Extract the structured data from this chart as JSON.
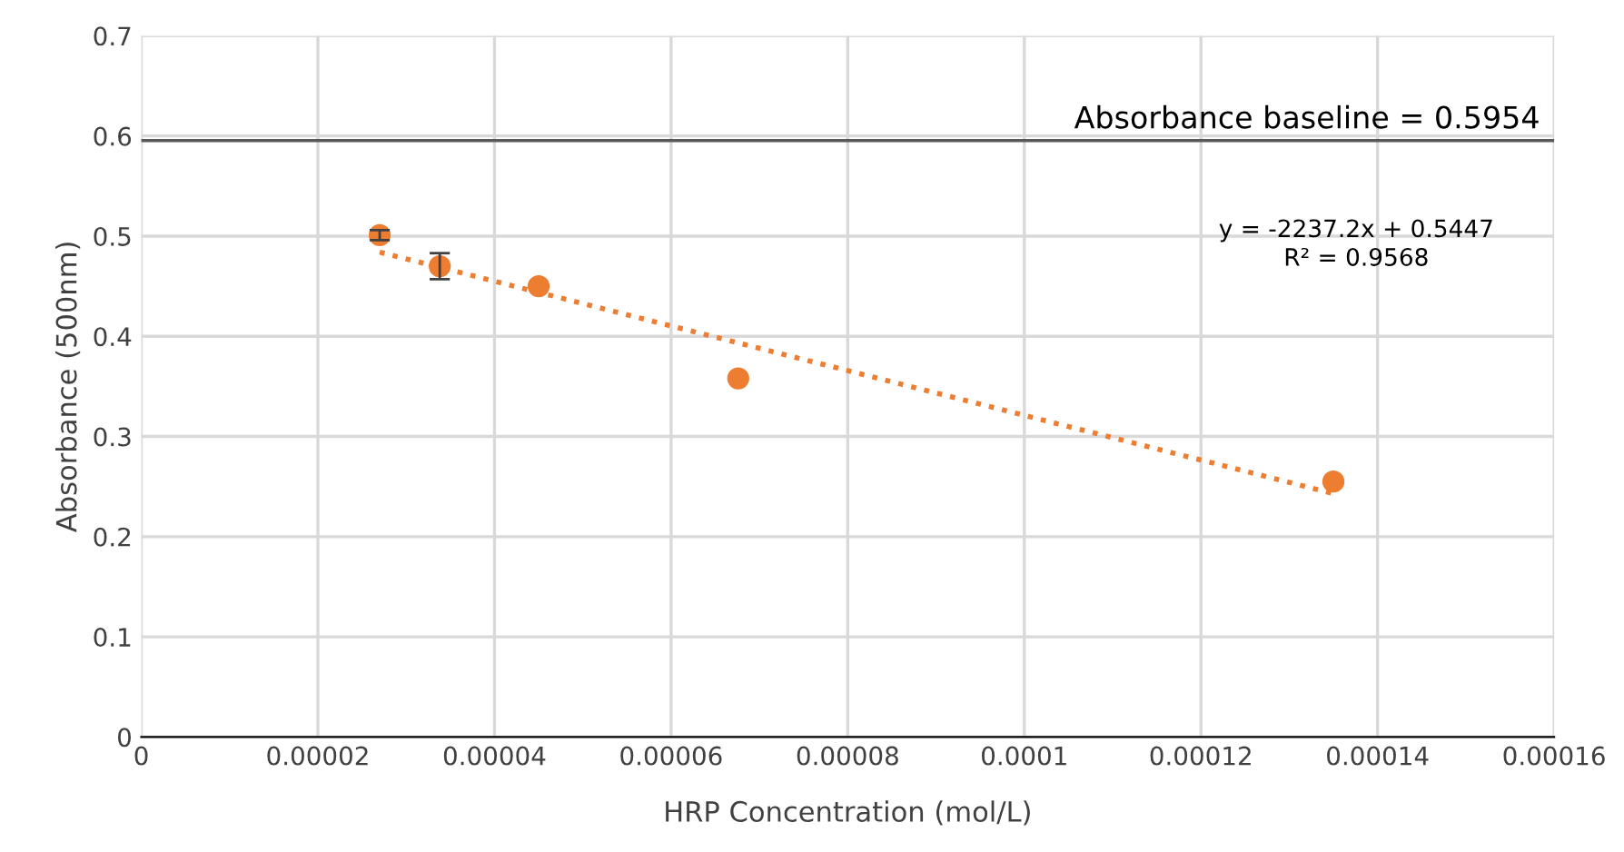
{
  "chart_data": {
    "type": "scatter",
    "xlabel": "HRP Concentration (mol/L)",
    "ylabel": "Absorbance (500nm)",
    "series": [
      {
        "color": "#ed7d31",
        "marker": "circle",
        "x": [
          2.7e-05,
          3.38e-05,
          4.5e-05,
          6.76e-05,
          0.000135
        ],
        "values": [
          0.501,
          0.47,
          0.45,
          0.358,
          0.255
        ],
        "errors": [
          0.005,
          0.013,
          null,
          null,
          null
        ]
      },
      {
        "type": "line",
        "color": "#ed7d31",
        "line_style": "dotted",
        "x": [
          2.7e-05,
          0.000135
        ],
        "values": [
          0.484,
          0.243
        ]
      }
    ],
    "ref_lines": [
      {
        "axis": "y",
        "value": 0.5954,
        "label": "Absorbance baseline = 0.5954",
        "color": "#595959"
      }
    ],
    "annotations": [
      "y = -2237.2x + 0.5447\nR² = 0.9568"
    ],
    "xlim": [
      0,
      0.00016
    ],
    "xticks": [
      0,
      {
        "value": 2e-05,
        "label": "0.00002"
      },
      {
        "value": 4e-05,
        "label": "0.00004"
      },
      {
        "value": 6e-05,
        "label": "0.00006"
      },
      {
        "value": 8e-05,
        "label": "0.00008"
      },
      {
        "value": 0.0001,
        "label": "0.0001"
      },
      {
        "value": 0.00012,
        "label": "0.00012"
      },
      {
        "value": 0.00014,
        "label": "0.00014"
      },
      {
        "value": 0.00016,
        "label": "0.00016"
      }
    ],
    "ylim": [
      0,
      0.7
    ],
    "yticks": [
      0,
      0.1,
      0.2,
      0.3,
      0.4,
      0.5,
      0.6,
      0.7
    ],
    "grid": true
  }
}
